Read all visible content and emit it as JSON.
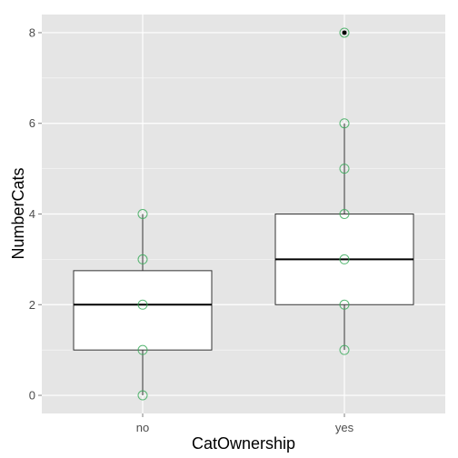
{
  "chart_data": {
    "type": "boxplot",
    "xlabel": "CatOwnership",
    "ylabel": "NumberCats",
    "categories": [
      "no",
      "yes"
    ],
    "ylim": [
      -0.4,
      8.4
    ],
    "yticks": [
      0,
      2,
      4,
      6,
      8
    ],
    "grid": true,
    "boxes": [
      {
        "category": "no",
        "whisker_low": 0,
        "q1": 1,
        "median": 2,
        "q3": 2.75,
        "whisker_high": 4
      },
      {
        "category": "yes",
        "whisker_low": 1,
        "q1": 2,
        "median": 3,
        "q3": 4,
        "whisker_high": 6
      }
    ],
    "outliers": [
      {
        "category": "yes",
        "y": 8
      }
    ],
    "points": [
      {
        "category": "no",
        "values": [
          0,
          1,
          2,
          3,
          4
        ]
      },
      {
        "category": "yes",
        "values": [
          1,
          2,
          3,
          4,
          5,
          6,
          8
        ]
      }
    ],
    "colors": {
      "panel_background": "#e5e5e5",
      "grid": "#ffffff",
      "box_fill": "#ffffff",
      "box_line": "#333333",
      "point_stroke": "#3aaa5a",
      "outlier": "#000000",
      "tick_text": "#4d4d4d"
    }
  }
}
